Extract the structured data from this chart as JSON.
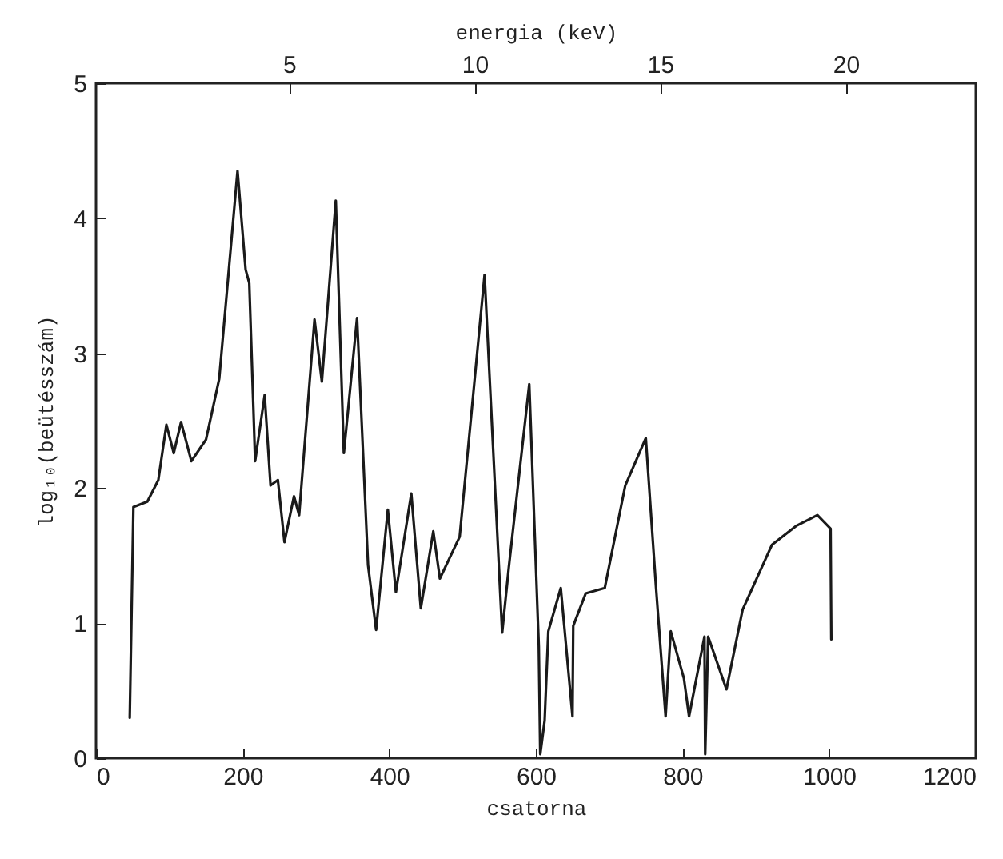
{
  "chart_data": {
    "type": "line",
    "xlabel": "csatorna",
    "ylabel": "log₁₀(beütésszám)",
    "x2label": "energia (keV)",
    "xlim": [
      0,
      1200
    ],
    "xticks": [
      0,
      200,
      400,
      600,
      800,
      1000,
      1200
    ],
    "ylim": [
      0,
      5
    ],
    "yticks": [
      0,
      1,
      2,
      3,
      4,
      5
    ],
    "x2lim": [
      -0.2,
      23.5
    ],
    "x2ticks": [
      5,
      10,
      15,
      20
    ],
    "grid": false,
    "marker": "none",
    "line_style": "solid",
    "series": [
      {
        "color": "#1a1a1a",
        "x": [
          46,
          51,
          70,
          85,
          96,
          106,
          116,
          130,
          150,
          168,
          193,
          204,
          209,
          217,
          230,
          238,
          248,
          257,
          270,
          277,
          298,
          308,
          327,
          338,
          356,
          371,
          382,
          398,
          409,
          430,
          443,
          460,
          469,
          496,
          530,
          554,
          563,
          591,
          604,
          606,
          612,
          617,
          634,
          650,
          651,
          668,
          694,
          722,
          750,
          764,
          777,
          784,
          802,
          809,
          830,
          831,
          835,
          860,
          882,
          922,
          955,
          984,
          1002,
          1003
        ],
        "values": [
          0.3,
          1.86,
          1.9,
          2.06,
          2.47,
          2.26,
          2.49,
          2.2,
          2.36,
          2.81,
          4.35,
          3.62,
          3.52,
          2.2,
          2.69,
          2.02,
          2.06,
          1.6,
          1.94,
          1.8,
          3.25,
          2.79,
          4.13,
          2.26,
          3.26,
          1.43,
          0.95,
          1.84,
          1.23,
          1.96,
          1.11,
          1.68,
          1.33,
          1.64,
          3.58,
          0.93,
          1.41,
          2.77,
          0.83,
          0.03,
          0.28,
          0.94,
          1.26,
          0.31,
          0.98,
          1.22,
          1.26,
          2.02,
          2.37,
          1.26,
          0.31,
          0.94,
          0.59,
          0.31,
          0.9,
          0.03,
          0.9,
          0.51,
          1.1,
          1.58,
          1.72,
          1.8,
          1.7,
          0.88
        ]
      }
    ]
  }
}
